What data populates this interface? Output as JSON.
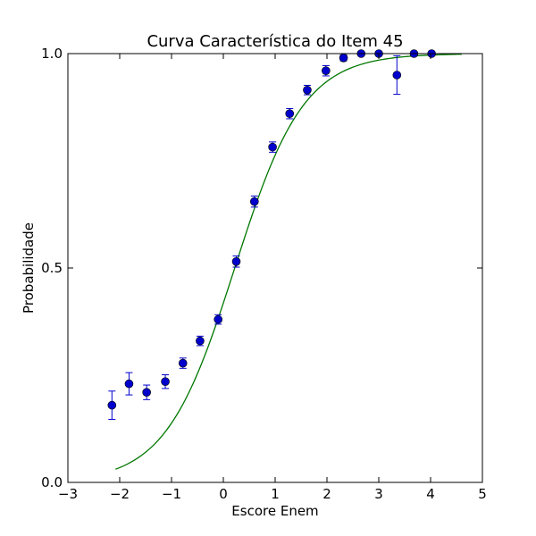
{
  "chart_data": {
    "type": "scatter",
    "title": "Curva Característica do Item 45",
    "xlabel": "Escore Enem",
    "ylabel": "Probabilidade",
    "xlim": [
      -3,
      5
    ],
    "ylim": [
      0,
      1
    ],
    "xticks": [
      -3,
      -2,
      -1,
      0,
      1,
      2,
      3,
      4,
      5
    ],
    "xtick_labels": [
      "−3",
      "−2",
      "−1",
      "0",
      "1",
      "2",
      "3",
      "4",
      "5"
    ],
    "yticks": [
      0,
      0.5,
      1
    ],
    "ytick_labels": [
      "0.0",
      "0.5",
      "1.0"
    ],
    "grid": false,
    "series": [
      {
        "kind": "points-with-errorbars",
        "color": "#0000cc",
        "points": [
          {
            "x": -2.15,
            "y": 0.18,
            "err": 0.033
          },
          {
            "x": -1.82,
            "y": 0.23,
            "err": 0.026
          },
          {
            "x": -1.48,
            "y": 0.21,
            "err": 0.017
          },
          {
            "x": -1.12,
            "y": 0.235,
            "err": 0.016
          },
          {
            "x": -0.78,
            "y": 0.278,
            "err": 0.012
          },
          {
            "x": -0.45,
            "y": 0.33,
            "err": 0.011
          },
          {
            "x": -0.1,
            "y": 0.38,
            "err": 0.011
          },
          {
            "x": 0.25,
            "y": 0.515,
            "err": 0.013
          },
          {
            "x": 0.6,
            "y": 0.655,
            "err": 0.013
          },
          {
            "x": 0.95,
            "y": 0.782,
            "err": 0.012
          },
          {
            "x": 1.28,
            "y": 0.86,
            "err": 0.012
          },
          {
            "x": 1.62,
            "y": 0.915,
            "err": 0.011
          },
          {
            "x": 1.98,
            "y": 0.96,
            "err": 0.012
          },
          {
            "x": 2.32,
            "y": 0.99,
            "err": 0.007
          },
          {
            "x": 2.66,
            "y": 1.0,
            "err": 0.004
          },
          {
            "x": 3.0,
            "y": 1.0,
            "err": 0.004
          },
          {
            "x": 3.35,
            "y": 0.95,
            "err": 0.045
          },
          {
            "x": 3.68,
            "y": 1.0,
            "err": 0.003
          },
          {
            "x": 4.02,
            "y": 1.0,
            "err": 0.003
          }
        ]
      },
      {
        "kind": "curve",
        "color": "#007700",
        "model": "logistic",
        "a": 1.5,
        "b": 0.22,
        "c": 0.0,
        "x_range": [
          -2.08,
          4.6
        ]
      }
    ]
  }
}
